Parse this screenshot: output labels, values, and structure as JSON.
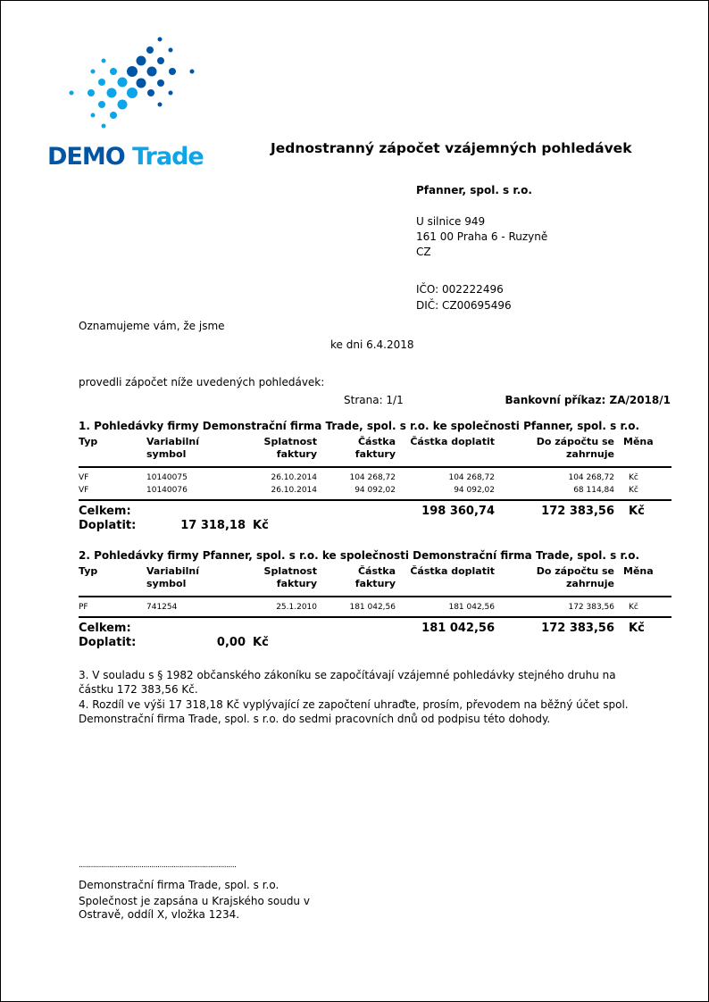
{
  "logo": {
    "word1": "DEMO",
    "word2": "Trade",
    "dark": "#0055a5",
    "light": "#0ea5e8"
  },
  "title": "Jednostranný zápočet vzájemných pohledávek",
  "recipient": {
    "name": "Pfanner, spol. s r.o.",
    "street": "U silnice 949",
    "city": "161 00 Praha 6 - Ruzyně",
    "country": "CZ",
    "ico": "IČO: 002222496",
    "dic": "DIČ: CZ00695496"
  },
  "intro": "Oznamujeme vám, že jsme",
  "date": "ke dni 6.4.2018",
  "intro2": "provedli zápočet níže uvedených pohledávek:",
  "page": "Strana: 1/1",
  "bank_order": "Bankovní příkaz: ZA/2018/1",
  "headers": {
    "typ": "Typ",
    "vs1": "Variabilní",
    "vs2": "symbol",
    "spl1": "Splatnost",
    "spl2": "faktury",
    "cf1": "Částka",
    "cf2": "faktury",
    "cd": "Částka doplatit",
    "dz1": "Do zápočtu se",
    "dz2": "zahrnuje",
    "mena": "Měna"
  },
  "sections": [
    {
      "title": "1. Pohledávky firmy Demonstrační firma Trade, spol. s r.o. ke společnosti Pfanner, spol. s r.o.",
      "rows": [
        [
          "VF",
          "10140075",
          "26.10.2014",
          "104 268,72",
          "104 268,72",
          "104 268,72",
          "Kč"
        ],
        [
          "VF",
          "10140076",
          "26.10.2014",
          "94 092,02",
          "94 092,02",
          "68 114,84",
          "Kč"
        ]
      ],
      "total_label": "Celkem:",
      "total_doplatit": "198 360,74",
      "total_zapocet": "172 383,56",
      "total_currency": "Kč",
      "doplatit_label": "Doplatit:",
      "doplatit_value": "17 318,18",
      "doplatit_currency": "Kč"
    },
    {
      "title": "2. Pohledávky firmy Pfanner, spol. s r.o. ke společnosti Demonstrační firma Trade, spol. s r.o.",
      "rows": [
        [
          "PF",
          "741254",
          "25.1.2010",
          "181 042,56",
          "181 042,56",
          "172 383,56",
          "Kč"
        ]
      ],
      "total_label": "Celkem:",
      "total_doplatit": "181 042,56",
      "total_zapocet": "172 383,56",
      "total_currency": "Kč",
      "doplatit_label": "Doplatit:",
      "doplatit_value": "0,00",
      "doplatit_currency": "Kč"
    }
  ],
  "clauses": [
    "3. V souladu s § 1982 občanského zákoníku se započítávají vzájemné pohledávky stejného druhu na",
    "částku 172 383,56 Kč.",
    "4. Rozdíl ve výši 17 318,18 Kč vyplývající ze započtení uhraďte, prosím, převodem na běžný účet spol.",
    "Demonstrační firma Trade, spol. s r.o. do sedmi pracovních dnů od podpisu této dohody."
  ],
  "signature": {
    "dots": "..............................................................................",
    "company": "Demonstrační firma Trade, spol. s r.o.",
    "reg1": "Společnost je zapsána u Krajského soudu v",
    "reg2": "Ostravě, oddíl X, vložka 1234."
  }
}
